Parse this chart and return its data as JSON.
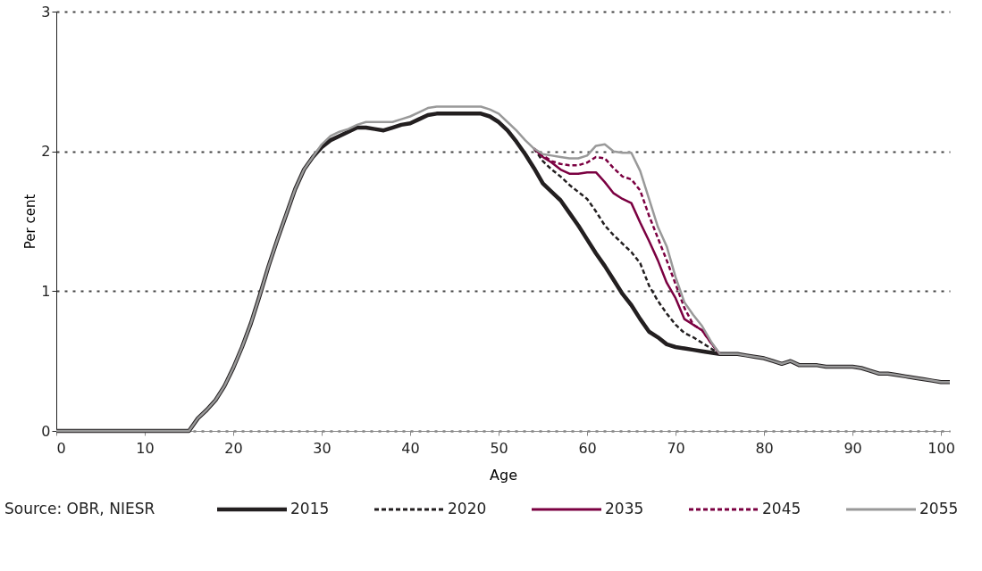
{
  "chart_data": {
    "type": "line",
    "xlabel": "Age",
    "ylabel": "Per cent",
    "x": [
      0,
      15,
      16,
      17,
      18,
      19,
      20,
      21,
      22,
      23,
      24,
      25,
      26,
      27,
      28,
      29,
      30,
      31,
      32,
      33,
      34,
      35,
      36,
      37,
      38,
      39,
      40,
      41,
      42,
      43,
      44,
      45,
      46,
      47,
      48,
      49,
      50,
      51,
      52,
      53,
      54,
      55,
      56,
      57,
      58,
      59,
      60,
      61,
      62,
      63,
      64,
      65,
      66,
      67,
      68,
      69,
      70,
      71,
      72,
      73,
      74,
      75,
      76,
      77,
      78,
      79,
      80,
      81,
      82,
      83,
      84,
      85,
      86,
      87,
      88,
      89,
      90,
      91,
      92,
      93,
      94,
      95,
      96,
      97,
      98,
      99,
      100,
      101
    ],
    "xlim": [
      0,
      101
    ],
    "xticks": [
      0,
      10,
      20,
      30,
      40,
      50,
      60,
      70,
      80,
      90,
      100
    ],
    "ylim": [
      0,
      3
    ],
    "yticks": [
      0,
      1,
      2,
      3
    ],
    "grid": "y",
    "legend": "bottom",
    "marker": "none",
    "annotations": [
      "Source: OBR, NIESR"
    ],
    "series": [
      {
        "name": "2015",
        "color": "#231f20",
        "line_style": "solid",
        "values": [
          0,
          0,
          0.09,
          0.15,
          0.22,
          0.32,
          0.45,
          0.6,
          0.77,
          0.97,
          1.18,
          1.37,
          1.55,
          1.73,
          1.87,
          1.96,
          2.03,
          2.08,
          2.11,
          2.14,
          2.17,
          2.17,
          2.16,
          2.15,
          2.17,
          2.19,
          2.2,
          2.23,
          2.26,
          2.27,
          2.27,
          2.27,
          2.27,
          2.27,
          2.27,
          2.25,
          2.21,
          2.15,
          2.07,
          1.98,
          1.88,
          1.77,
          1.71,
          1.65,
          1.56,
          1.47,
          1.37,
          1.27,
          1.18,
          1.08,
          0.98,
          0.9,
          0.8,
          0.71,
          0.67,
          0.62,
          0.6,
          0.59,
          0.58,
          0.57,
          0.56,
          0.55,
          0.55,
          0.55,
          0.54,
          0.53,
          0.52,
          0.5,
          0.48,
          0.5,
          0.47,
          0.47,
          0.47,
          0.46,
          0.46,
          0.46,
          0.46,
          0.45,
          0.43,
          0.41,
          0.41,
          0.4,
          0.39,
          0.38,
          0.37,
          0.36,
          0.35,
          0.35
        ]
      },
      {
        "name": "2020",
        "color": "#231f20",
        "line_style": "dashed",
        "values": [
          null,
          null,
          null,
          null,
          null,
          null,
          null,
          null,
          null,
          null,
          null,
          null,
          null,
          null,
          null,
          null,
          null,
          null,
          null,
          null,
          null,
          null,
          null,
          null,
          null,
          null,
          null,
          null,
          null,
          null,
          null,
          null,
          null,
          null,
          null,
          null,
          null,
          null,
          null,
          null,
          2.02,
          1.93,
          1.87,
          1.82,
          1.76,
          1.71,
          1.66,
          1.57,
          1.47,
          1.4,
          1.34,
          1.28,
          1.2,
          1.04,
          0.93,
          0.84,
          0.76,
          0.7,
          0.67,
          0.63,
          0.59,
          0.55,
          null,
          null,
          null,
          null,
          null,
          null,
          null,
          null,
          null,
          null,
          null,
          null,
          null,
          null,
          null,
          null,
          null,
          null,
          null,
          null,
          null,
          null,
          null,
          null,
          null,
          null
        ]
      },
      {
        "name": "2035",
        "color": "#7b0041",
        "line_style": "solid",
        "values": [
          null,
          null,
          null,
          null,
          null,
          null,
          null,
          null,
          null,
          null,
          null,
          null,
          null,
          null,
          null,
          null,
          null,
          null,
          null,
          null,
          null,
          null,
          null,
          null,
          null,
          null,
          null,
          null,
          null,
          null,
          null,
          null,
          null,
          null,
          null,
          null,
          null,
          null,
          null,
          null,
          2.02,
          1.96,
          1.92,
          1.87,
          1.84,
          1.84,
          1.85,
          1.85,
          1.78,
          1.7,
          1.66,
          1.63,
          1.49,
          1.36,
          1.22,
          1.06,
          0.95,
          0.8,
          0.76,
          0.72,
          0.63,
          0.55,
          null,
          null,
          null,
          null,
          null,
          null,
          null,
          null,
          null,
          null,
          null,
          null,
          null,
          null,
          null,
          null,
          null,
          null,
          null,
          null,
          null,
          null,
          null,
          null,
          null,
          null
        ]
      },
      {
        "name": "2045",
        "color": "#7b0041",
        "line_style": "dashed",
        "values": [
          null,
          null,
          null,
          null,
          null,
          null,
          null,
          null,
          null,
          null,
          null,
          null,
          null,
          null,
          null,
          null,
          null,
          null,
          null,
          null,
          null,
          null,
          null,
          null,
          null,
          null,
          null,
          null,
          null,
          null,
          null,
          null,
          null,
          null,
          null,
          null,
          null,
          null,
          null,
          null,
          2.02,
          1.97,
          1.93,
          1.91,
          1.9,
          1.9,
          1.92,
          1.96,
          1.95,
          1.88,
          1.82,
          1.8,
          1.72,
          1.54,
          1.38,
          1.22,
          1.05,
          0.88,
          0.76,
          0.72,
          0.63,
          0.55,
          null,
          null,
          null,
          null,
          null,
          null,
          null,
          null,
          null,
          null,
          null,
          null,
          null,
          null,
          null,
          null,
          null,
          null,
          null,
          null,
          null,
          null,
          null,
          null,
          null,
          null
        ]
      },
      {
        "name": "2055",
        "color": "#999999",
        "line_style": "solid",
        "values": [
          0,
          0,
          0.09,
          0.15,
          0.22,
          0.32,
          0.45,
          0.6,
          0.77,
          0.97,
          1.18,
          1.37,
          1.55,
          1.73,
          1.87,
          1.96,
          2.05,
          2.11,
          2.14,
          2.16,
          2.19,
          2.21,
          2.21,
          2.21,
          2.21,
          2.23,
          2.25,
          2.28,
          2.31,
          2.32,
          2.32,
          2.32,
          2.32,
          2.32,
          2.32,
          2.3,
          2.27,
          2.21,
          2.15,
          2.08,
          2.02,
          1.98,
          1.97,
          1.96,
          1.95,
          1.95,
          1.97,
          2.04,
          2.05,
          2.0,
          1.99,
          1.99,
          1.86,
          1.66,
          1.46,
          1.32,
          1.1,
          0.92,
          0.83,
          0.75,
          0.64,
          0.55,
          0.55,
          0.55,
          0.54,
          0.53,
          0.52,
          0.5,
          0.48,
          0.5,
          0.47,
          0.47,
          0.47,
          0.46,
          0.46,
          0.46,
          0.46,
          0.45,
          0.43,
          0.41,
          0.41,
          0.4,
          0.39,
          0.38,
          0.37,
          0.36,
          0.35,
          0.35
        ]
      }
    ]
  }
}
